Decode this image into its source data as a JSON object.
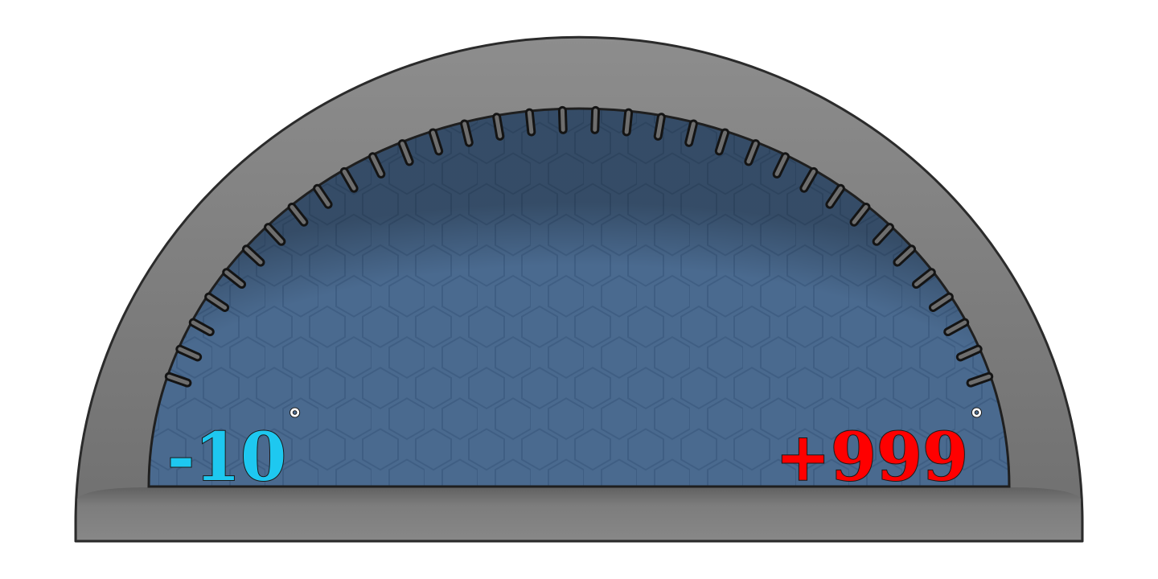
{
  "gauge": {
    "min_label": {
      "value": "-10",
      "unit": "°",
      "color": "#1ec8f0"
    },
    "max_label": {
      "value": "+999",
      "unit": "°",
      "color": "#ff0000"
    },
    "colors": {
      "bezel": "#7a7a7a",
      "bezel_highlight": "#9a9a9a",
      "bezel_outline": "#2b2b2b",
      "face": "#4a6a8f",
      "hex_pattern": "#3f5e83",
      "tick_fill": "#6e6e6e",
      "tick_outline": "#141414"
    },
    "icons": {
      "tick": "tick-mark",
      "pattern": "hexagon-grid"
    }
  }
}
